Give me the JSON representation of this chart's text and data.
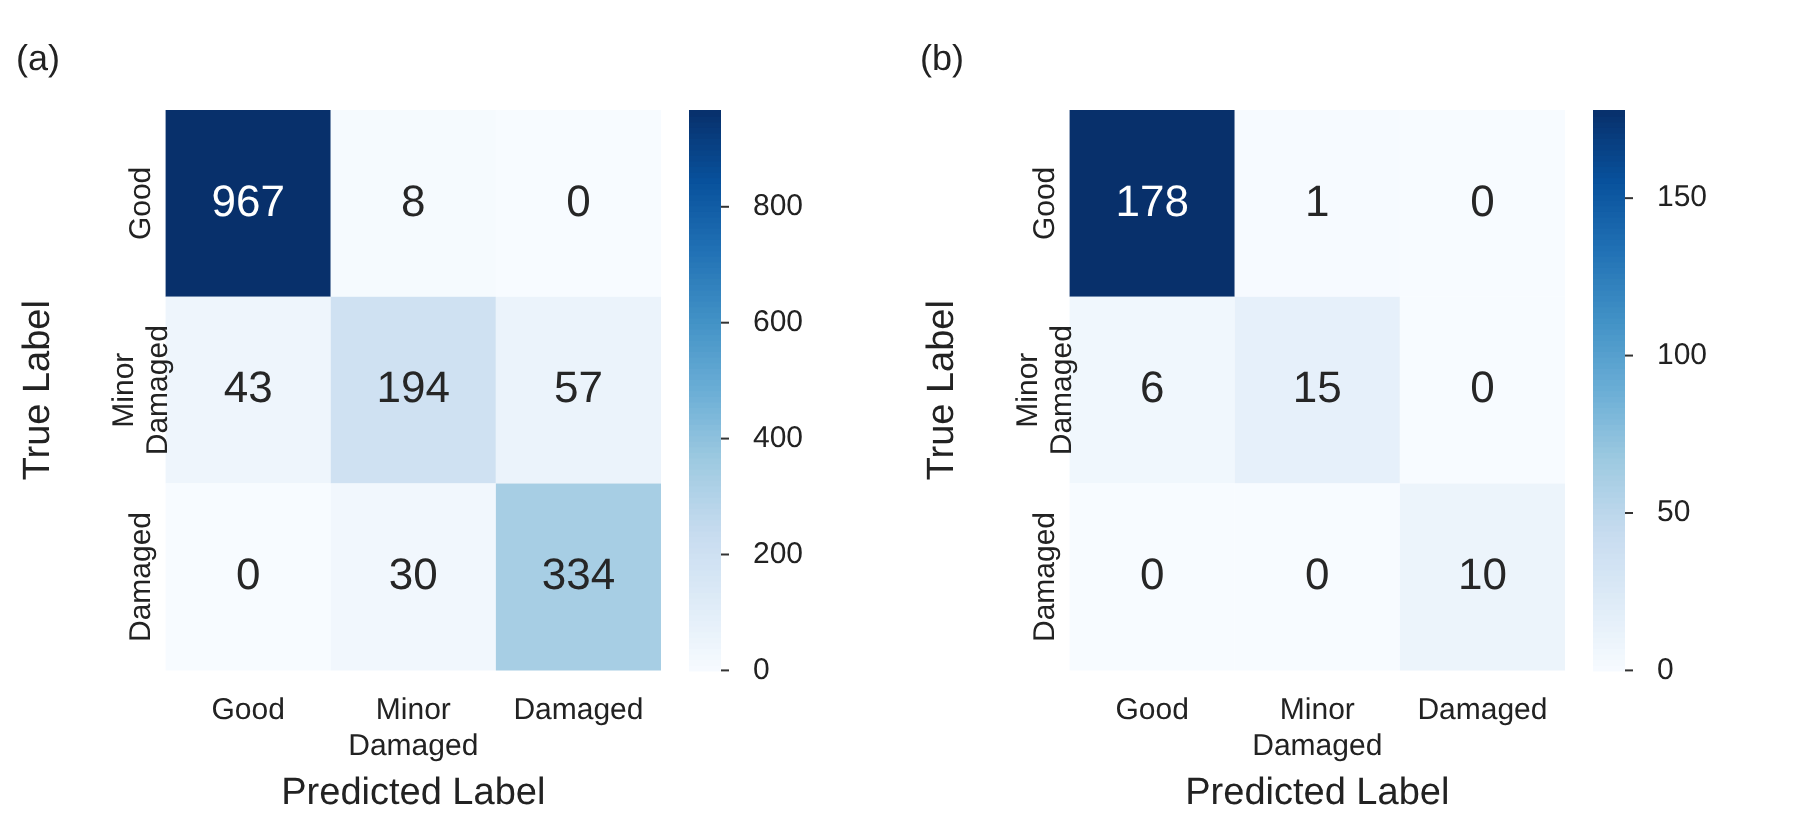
{
  "chart_data": [
    {
      "type": "heatmap",
      "title": "(a)",
      "xlabel": "Predicted Label",
      "ylabel": "True Label",
      "categories": [
        "Good",
        "Minor Damaged",
        "Damaged"
      ],
      "y_categories": [
        "Good",
        "Minor Damaged",
        "Damaged"
      ],
      "cells": [
        [
          967,
          8,
          0
        ],
        [
          43,
          194,
          57
        ],
        [
          0,
          30,
          334
        ]
      ],
      "clim": [
        0,
        967
      ],
      "cticks": [
        0,
        200,
        400,
        600,
        800
      ],
      "data_labels": true
    },
    {
      "type": "heatmap",
      "title": "(b)",
      "xlabel": "Predicted Label",
      "ylabel": "True Label",
      "categories": [
        "Good",
        "Minor Damaged",
        "Damaged"
      ],
      "y_categories": [
        "Good",
        "Minor Damaged",
        "Damaged"
      ],
      "cells": [
        [
          178,
          1,
          0
        ],
        [
          6,
          15,
          0
        ],
        [
          0,
          0,
          10
        ]
      ],
      "clim": [
        0,
        178
      ],
      "cticks": [
        0,
        50,
        100,
        150
      ],
      "data_labels": true
    }
  ]
}
